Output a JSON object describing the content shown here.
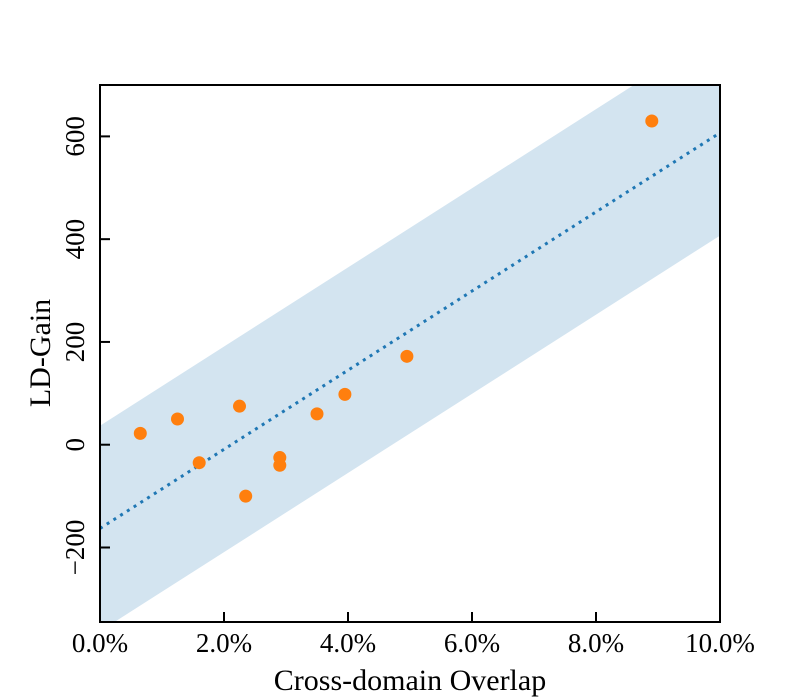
{
  "chart_data": {
    "type": "scatter",
    "xlabel": "Cross-domain Overlap",
    "ylabel": "LD-Gain",
    "xlim": [
      0.0,
      10.0
    ],
    "ylim": [
      -345,
      700
    ],
    "x_ticks": [
      0,
      2,
      4,
      6,
      8,
      10
    ],
    "x_tick_labels": [
      "0.0%",
      "2.0%",
      "4.0%",
      "6.0%",
      "8.0%",
      "10.0%"
    ],
    "y_ticks": [
      -200,
      0,
      200,
      400,
      600
    ],
    "y_tick_labels": [
      "−200",
      "0",
      "200",
      "400",
      "600"
    ],
    "grid": false,
    "colors": {
      "points": "#ff7f0e",
      "fit_line": "#1f77b4",
      "band": "#d3e4f0",
      "axes": "#000000"
    },
    "fit": {
      "slope": 77,
      "intercept": -163,
      "style": "dotted"
    },
    "band": {
      "halfwidth": 200
    },
    "points": [
      {
        "x": 0.65,
        "y": 22
      },
      {
        "x": 1.25,
        "y": 50
      },
      {
        "x": 1.6,
        "y": -35
      },
      {
        "x": 2.25,
        "y": 75
      },
      {
        "x": 2.35,
        "y": -100
      },
      {
        "x": 2.9,
        "y": -25
      },
      {
        "x": 2.9,
        "y": -40
      },
      {
        "x": 3.5,
        "y": 60
      },
      {
        "x": 3.95,
        "y": 98
      },
      {
        "x": 4.95,
        "y": 172
      },
      {
        "x": 8.9,
        "y": 630
      }
    ]
  }
}
